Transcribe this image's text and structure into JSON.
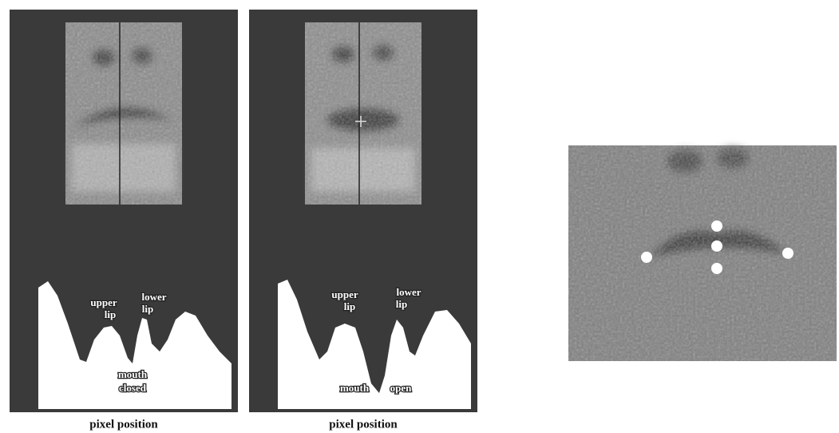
{
  "panels": [
    {
      "labels": [
        "upper",
        "lip",
        "lower",
        "lip",
        "mouth",
        "closed"
      ],
      "caption": "pixel position"
    },
    {
      "labels": [
        "upper",
        "lip",
        "lower",
        "lip",
        "mouth",
        "open"
      ],
      "caption": "pixel position"
    }
  ]
}
